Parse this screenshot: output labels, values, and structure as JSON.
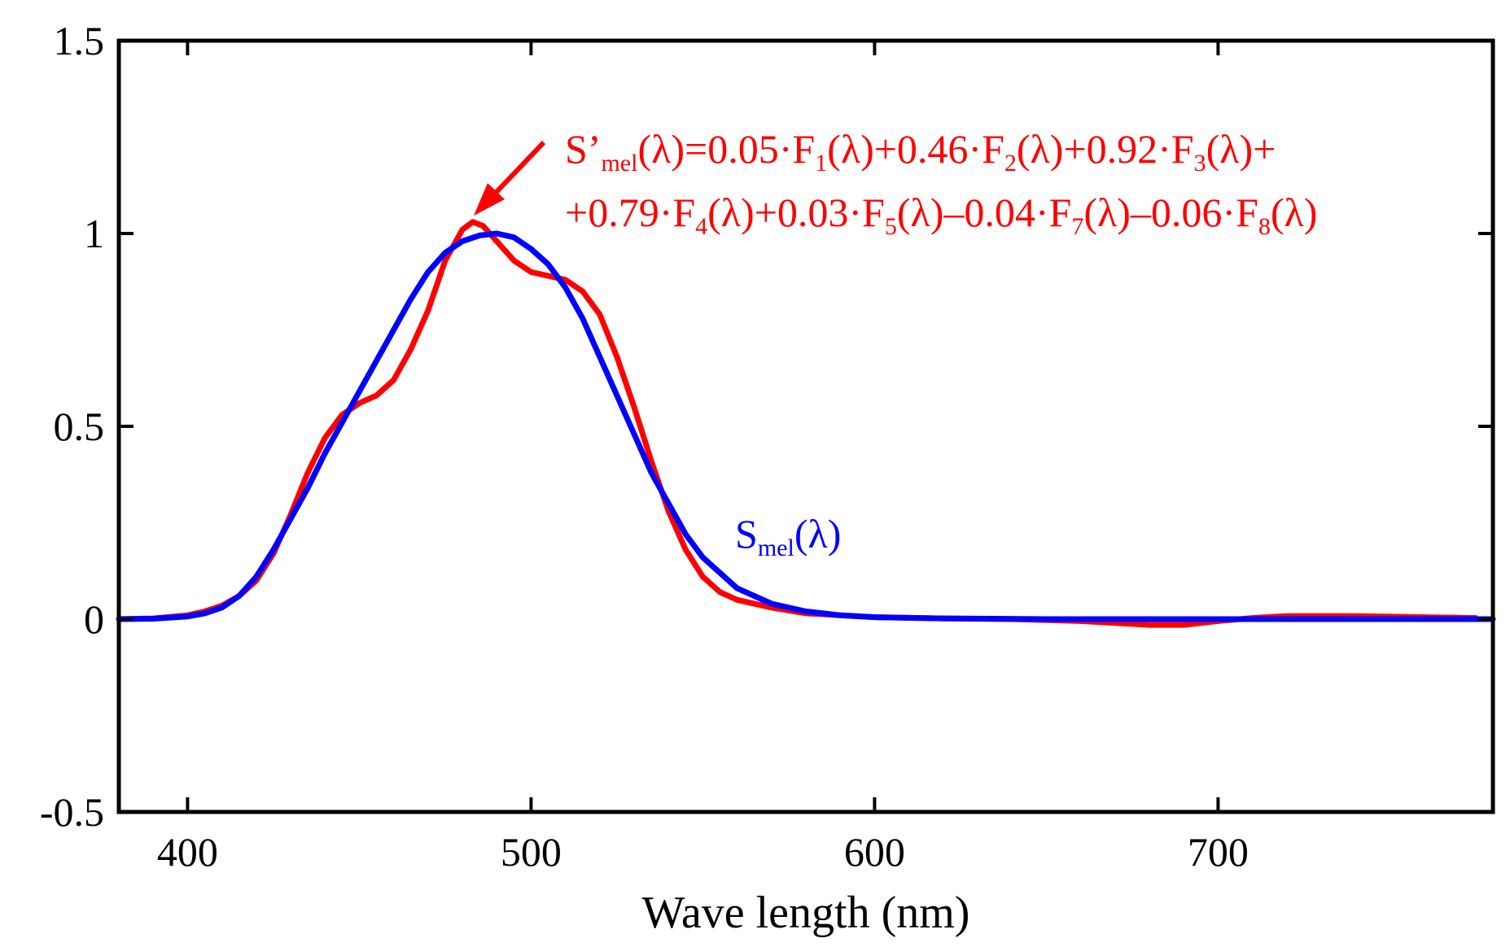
{
  "chart_data": {
    "type": "line",
    "title": "",
    "xlabel": "Wave length (nm)",
    "ylabel": "",
    "xlim": [
      380,
      780
    ],
    "ylim": [
      -0.5,
      1.5
    ],
    "x_ticks": [
      400,
      500,
      600,
      700
    ],
    "x_tick_labels": [
      "400",
      "500",
      "600",
      "700"
    ],
    "y_ticks": [
      -0.5,
      0,
      0.5,
      1,
      1.5
    ],
    "y_tick_labels": [
      "-0.5",
      "0",
      "0.5",
      "1",
      "1.5"
    ],
    "grid": false,
    "series": [
      {
        "color": "#ff0000",
        "x": [
          380,
          390,
          400,
          405,
          410,
          415,
          420,
          425,
          430,
          435,
          440,
          445,
          450,
          455,
          460,
          465,
          470,
          475,
          480,
          483,
          486,
          490,
          495,
          500,
          505,
          510,
          515,
          520,
          525,
          530,
          535,
          540,
          545,
          550,
          555,
          560,
          570,
          580,
          600,
          620,
          640,
          660,
          670,
          680,
          690,
          700,
          710,
          720,
          740,
          760,
          775
        ],
        "values": [
          0.0,
          0.002,
          0.01,
          0.02,
          0.035,
          0.06,
          0.1,
          0.17,
          0.27,
          0.38,
          0.47,
          0.53,
          0.56,
          0.58,
          0.62,
          0.7,
          0.8,
          0.93,
          1.01,
          1.03,
          1.02,
          0.98,
          0.93,
          0.9,
          0.89,
          0.88,
          0.85,
          0.79,
          0.68,
          0.55,
          0.41,
          0.28,
          0.18,
          0.11,
          0.07,
          0.05,
          0.03,
          0.015,
          0.005,
          0.002,
          0.0,
          -0.005,
          -0.01,
          -0.015,
          -0.015,
          -0.005,
          0.003,
          0.008,
          0.008,
          0.005,
          0.003
        ]
      },
      {
        "color": "#0000ff",
        "x": [
          380,
          390,
          400,
          405,
          410,
          415,
          420,
          425,
          430,
          435,
          440,
          445,
          450,
          455,
          460,
          465,
          470,
          475,
          480,
          485,
          490,
          495,
          500,
          505,
          510,
          515,
          520,
          525,
          530,
          535,
          540,
          545,
          550,
          555,
          560,
          570,
          580,
          590,
          600,
          620,
          650,
          700,
          780
        ],
        "values": [
          0.0,
          0.001,
          0.007,
          0.015,
          0.03,
          0.06,
          0.11,
          0.18,
          0.26,
          0.34,
          0.43,
          0.51,
          0.59,
          0.67,
          0.75,
          0.83,
          0.9,
          0.95,
          0.98,
          0.995,
          1.0,
          0.99,
          0.96,
          0.92,
          0.86,
          0.78,
          0.68,
          0.58,
          0.48,
          0.38,
          0.3,
          0.22,
          0.16,
          0.12,
          0.08,
          0.04,
          0.02,
          0.01,
          0.005,
          0.002,
          0.0,
          0.0,
          0.0
        ]
      }
    ],
    "annotations": {
      "red_formula_line1": [
        {
          "t": "S’"
        },
        {
          "t": "mel",
          "sub": true
        },
        {
          "t": "(λ)=0.05·F"
        },
        {
          "t": "1",
          "sub": true
        },
        {
          "t": "(λ)+0.46·F"
        },
        {
          "t": "2",
          "sub": true
        },
        {
          "t": "(λ)+0.92·F"
        },
        {
          "t": "3",
          "sub": true
        },
        {
          "t": "(λ)+"
        }
      ],
      "red_formula_line2": [
        {
          "t": "+0.79·F"
        },
        {
          "t": "4",
          "sub": true
        },
        {
          "t": "(λ)+0.03·F"
        },
        {
          "t": "5",
          "sub": true
        },
        {
          "t": "(λ)–0.04·F"
        },
        {
          "t": "7",
          "sub": true
        },
        {
          "t": "(λ)–0.06·F"
        },
        {
          "t": "8",
          "sub": true
        },
        {
          "t": "(λ)"
        }
      ],
      "blue_label": [
        {
          "t": "S"
        },
        {
          "t": "mel",
          "sub": true
        },
        {
          "t": "(λ)"
        }
      ]
    }
  }
}
